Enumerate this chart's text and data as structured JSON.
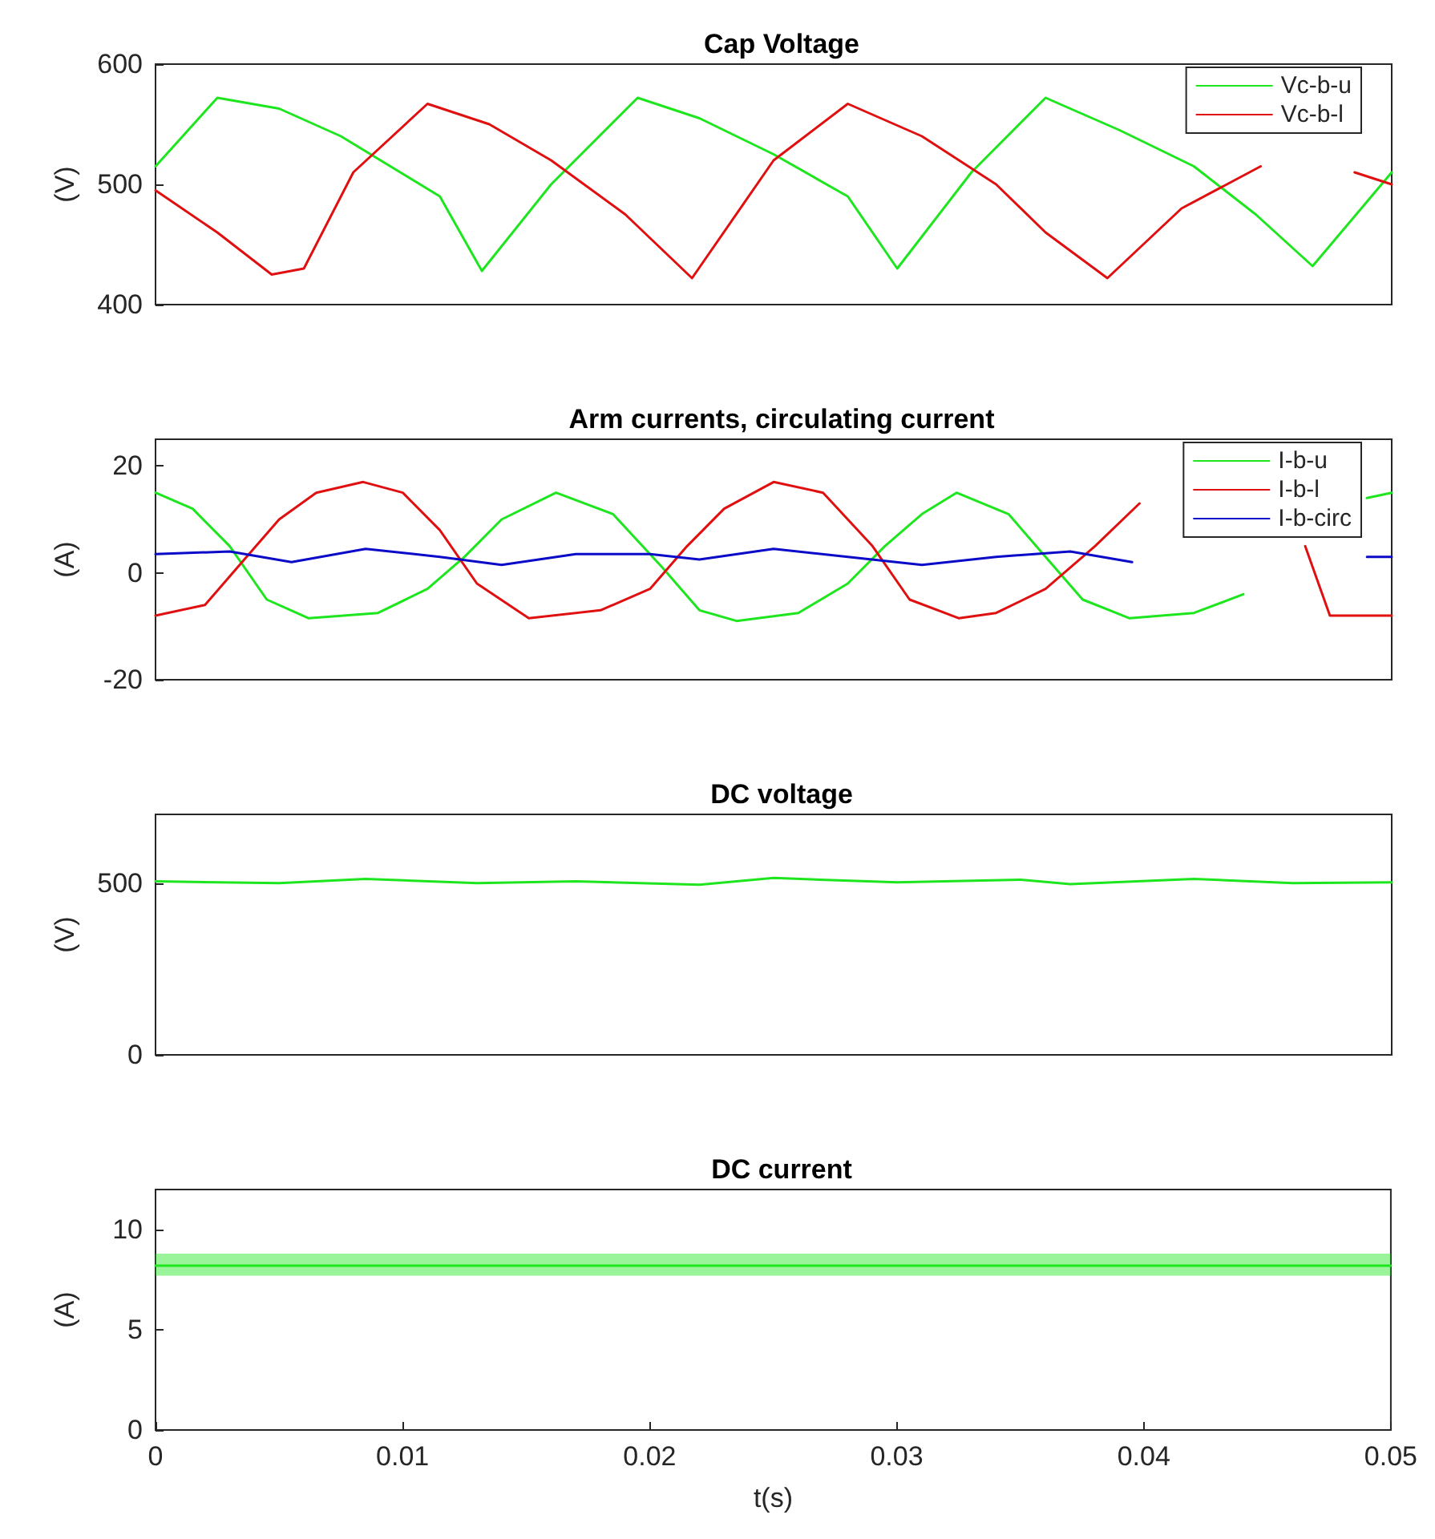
{
  "chart_data": [
    {
      "type": "line",
      "title": "Cap Voltage",
      "ylabel": "(V)",
      "xlim": [
        0,
        0.05
      ],
      "ylim": [
        400,
        600
      ],
      "yticks": [
        400,
        500,
        600
      ],
      "tick_labels": "y",
      "grid": false,
      "legend": "top right",
      "series": [
        {
          "name": "Vc-b-u",
          "color": "#1ee61e",
          "x": [
            0,
            0.0025,
            0.005,
            0.0075,
            0.0095,
            0.0115,
            0.0132,
            0.016,
            0.0195,
            0.022,
            0.025,
            0.028,
            0.03,
            0.033,
            0.036,
            0.039,
            0.042,
            0.0445,
            0.0468,
            0.05
          ],
          "values": [
            515,
            572,
            563,
            540,
            515,
            490,
            428,
            500,
            572,
            555,
            525,
            490,
            430,
            510,
            572,
            545,
            515,
            475,
            432,
            510
          ]
        },
        {
          "name": "Vc-b-l",
          "color": "#e01010",
          "x": [
            0,
            0.0025,
            0.0047,
            0.006,
            0.008,
            0.011,
            0.0135,
            0.016,
            0.019,
            0.0217,
            0.025,
            0.028,
            0.031,
            0.034,
            0.036,
            0.0385,
            0.0415,
            0.0447,
            0.0465,
            0.0485,
            0.05
          ],
          "values": [
            495,
            460,
            425,
            430,
            510,
            567,
            550,
            520,
            475,
            422,
            520,
            567,
            540,
            500,
            460,
            422,
            480,
            515,
            null,
            510,
            500
          ]
        }
      ]
    },
    {
      "type": "line",
      "title": "Arm currents, circulating current",
      "ylabel": "(A)",
      "xlim": [
        0,
        0.05
      ],
      "ylim": [
        -20,
        25
      ],
      "yticks": [
        -20,
        0,
        20
      ],
      "tick_labels": "y",
      "grid": false,
      "legend": "top right",
      "series": [
        {
          "name": "I-b-u",
          "color": "#1ee61e",
          "x": [
            0,
            0.0015,
            0.003,
            0.0045,
            0.0062,
            0.009,
            0.011,
            0.0125,
            0.014,
            0.0162,
            0.0185,
            0.0205,
            0.022,
            0.0235,
            0.026,
            0.028,
            0.0295,
            0.031,
            0.0324,
            0.0345,
            0.036,
            0.0375,
            0.0394,
            0.042,
            0.044,
            0.0465,
            0.049,
            0.05
          ],
          "values": [
            15,
            12,
            5,
            -5,
            -8.5,
            -7.5,
            -3,
            3,
            10,
            15,
            11,
            1,
            -7,
            -9,
            -7.5,
            -2,
            5,
            11,
            15,
            11,
            3,
            -5,
            -8.5,
            -7.5,
            -4,
            null,
            14,
            15
          ]
        },
        {
          "name": "I-b-l",
          "color": "#e01010",
          "x": [
            0,
            0.002,
            0.0035,
            0.005,
            0.0065,
            0.0084,
            0.01,
            0.0115,
            0.013,
            0.0151,
            0.018,
            0.02,
            0.0215,
            0.023,
            0.025,
            0.027,
            0.029,
            0.0305,
            0.0325,
            0.034,
            0.036,
            0.038,
            0.0398,
            0.0415,
            0.0465,
            0.0475,
            0.05
          ],
          "values": [
            -8,
            -6,
            2,
            10,
            15,
            17,
            15,
            8,
            -2,
            -8.5,
            -7,
            -3,
            5,
            12,
            17,
            15,
            5,
            -5,
            -8.5,
            -7.5,
            -3,
            5,
            13,
            null,
            5,
            -8,
            -8
          ]
        },
        {
          "name": "I-b-circ",
          "color": "#0a0ac8",
          "x": [
            0,
            0.003,
            0.0055,
            0.0085,
            0.0115,
            0.014,
            0.017,
            0.02,
            0.022,
            0.025,
            0.028,
            0.031,
            0.034,
            0.037,
            0.0395,
            0.042,
            0.049,
            0.05
          ],
          "values": [
            3.5,
            4,
            2,
            4.5,
            3,
            1.5,
            3.5,
            3.5,
            2.5,
            4.5,
            3,
            1.5,
            3,
            4,
            2,
            null,
            3,
            3
          ]
        }
      ]
    },
    {
      "type": "line",
      "title": "DC voltage",
      "ylabel": "(V)",
      "xlim": [
        0,
        0.05
      ],
      "ylim": [
        0,
        700
      ],
      "yticks": [
        0,
        500
      ],
      "tick_labels": "y",
      "grid": false,
      "legend": false,
      "series": [
        {
          "color": "#1ee61e",
          "x": [
            0,
            0.005,
            0.0085,
            0.013,
            0.017,
            0.022,
            0.025,
            0.03,
            0.035,
            0.037,
            0.042,
            0.046,
            0.05
          ],
          "values": [
            505,
            500,
            512,
            500,
            505,
            495,
            515,
            502,
            510,
            497,
            512,
            500,
            502
          ]
        }
      ]
    },
    {
      "type": "line",
      "title": "DC current",
      "ylabel": "(A)",
      "xlabel": "t(s)",
      "xlim": [
        0,
        0.05
      ],
      "ylim": [
        0,
        12
      ],
      "yticks": [
        0,
        5,
        10
      ],
      "xticks": [
        0,
        0.01,
        0.02,
        0.03,
        0.04,
        0.05
      ],
      "grid": false,
      "legend": false,
      "series": [
        {
          "color": "#1ee61e",
          "x": [
            0,
            0.01,
            0.02,
            0.03,
            0.04,
            0.05
          ],
          "values": [
            8.2,
            8.2,
            8.2,
            8.2,
            8.2,
            8.2
          ],
          "lower": [
            7.7,
            7.7,
            7.7,
            7.7,
            7.7,
            7.7
          ],
          "upper": [
            8.8,
            8.8,
            8.8,
            8.8,
            8.8,
            8.8
          ]
        }
      ]
    }
  ]
}
